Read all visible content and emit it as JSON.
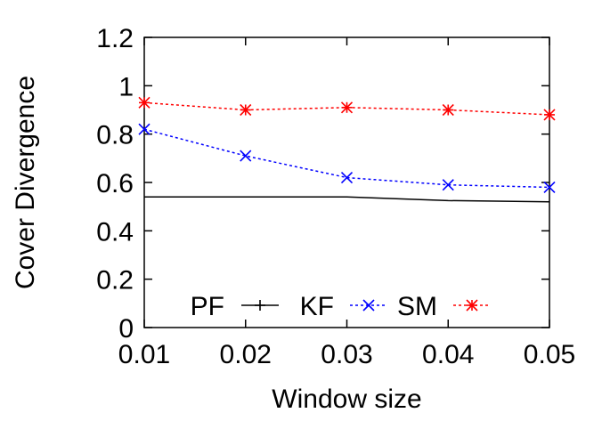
{
  "chart_data": {
    "type": "line",
    "xlabel": "Window size",
    "ylabel": "Cover Divergence",
    "x": [
      0.01,
      0.02,
      0.03,
      0.04,
      0.05
    ],
    "x_tick_labels": [
      "0.01",
      "0.02",
      "0.03",
      "0.04",
      "0.05"
    ],
    "ylim": [
      0,
      1.2
    ],
    "y_ticks": [
      0,
      0.2,
      0.4,
      0.6,
      0.8,
      1,
      1.2
    ],
    "y_tick_labels": [
      "0",
      "0.2",
      "0.4",
      "0.6",
      "0.8",
      "1",
      "1.2"
    ],
    "grid": false,
    "legend_position": "bottom-inside",
    "series": [
      {
        "name": "PF",
        "values": [
          0.54,
          0.54,
          0.54,
          0.525,
          0.52
        ],
        "color": "#000000",
        "marker": "plus",
        "dash": "solid"
      },
      {
        "name": "KF",
        "values": [
          0.82,
          0.71,
          0.62,
          0.59,
          0.58
        ],
        "color": "#0000ff",
        "marker": "x",
        "dash": "dotted"
      },
      {
        "name": "SM",
        "values": [
          0.93,
          0.9,
          0.91,
          0.9,
          0.88
        ],
        "color": "#ff0000",
        "marker": "star",
        "dash": "dotted"
      }
    ]
  }
}
